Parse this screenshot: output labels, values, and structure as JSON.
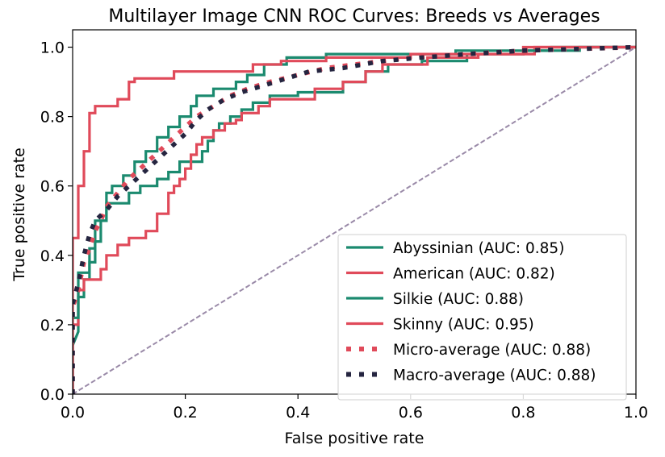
{
  "chart_data": {
    "type": "line",
    "title": "Multilayer Image CNN ROC Curves: Breeds vs Averages",
    "xlabel": "False positive rate",
    "ylabel": "True positive rate",
    "xlim": [
      0.0,
      1.0
    ],
    "ylim": [
      0.0,
      1.05
    ],
    "xticks": [
      "0.0",
      "0.2",
      "0.4",
      "0.6",
      "0.8",
      "1.0"
    ],
    "yticks": [
      "0.0",
      "0.2",
      "0.4",
      "0.6",
      "0.8",
      "1.0"
    ],
    "grid": false,
    "legend_position": "lower-right",
    "series": [
      {
        "name": "Abyssinian (AUC: 0.85)",
        "color": "#1b8a6f",
        "style": "solid",
        "points": [
          [
            0,
            0
          ],
          [
            0,
            0.14
          ],
          [
            0.01,
            0.18
          ],
          [
            0.01,
            0.28
          ],
          [
            0.02,
            0.28
          ],
          [
            0.02,
            0.33
          ],
          [
            0.03,
            0.33
          ],
          [
            0.03,
            0.38
          ],
          [
            0.04,
            0.38
          ],
          [
            0.04,
            0.44
          ],
          [
            0.05,
            0.44
          ],
          [
            0.05,
            0.5
          ],
          [
            0.06,
            0.5
          ],
          [
            0.06,
            0.55
          ],
          [
            0.1,
            0.55
          ],
          [
            0.1,
            0.58
          ],
          [
            0.12,
            0.58
          ],
          [
            0.12,
            0.6
          ],
          [
            0.15,
            0.6
          ],
          [
            0.15,
            0.62
          ],
          [
            0.17,
            0.62
          ],
          [
            0.17,
            0.64
          ],
          [
            0.19,
            0.64
          ],
          [
            0.19,
            0.67
          ],
          [
            0.23,
            0.67
          ],
          [
            0.23,
            0.7
          ],
          [
            0.24,
            0.7
          ],
          [
            0.24,
            0.73
          ],
          [
            0.25,
            0.73
          ],
          [
            0.25,
            0.76
          ],
          [
            0.26,
            0.76
          ],
          [
            0.26,
            0.78
          ],
          [
            0.28,
            0.78
          ],
          [
            0.28,
            0.8
          ],
          [
            0.3,
            0.8
          ],
          [
            0.3,
            0.82
          ],
          [
            0.32,
            0.82
          ],
          [
            0.32,
            0.84
          ],
          [
            0.35,
            0.84
          ],
          [
            0.35,
            0.86
          ],
          [
            0.4,
            0.86
          ],
          [
            0.4,
            0.87
          ],
          [
            0.48,
            0.87
          ],
          [
            0.48,
            0.9
          ],
          [
            0.52,
            0.9
          ],
          [
            0.52,
            0.93
          ],
          [
            0.56,
            0.93
          ],
          [
            0.56,
            0.95
          ],
          [
            0.62,
            0.95
          ],
          [
            0.62,
            0.96
          ],
          [
            0.7,
            0.96
          ],
          [
            0.7,
            0.98
          ],
          [
            0.8,
            0.98
          ],
          [
            0.8,
            0.99
          ],
          [
            0.9,
            0.99
          ],
          [
            0.9,
            1.0
          ],
          [
            1,
            1.0
          ]
        ]
      },
      {
        "name": "American (AUC: 0.82)",
        "color": "#e04a5a",
        "style": "solid",
        "points": [
          [
            0,
            0
          ],
          [
            0,
            0.2
          ],
          [
            0.01,
            0.2
          ],
          [
            0.01,
            0.3
          ],
          [
            0.02,
            0.3
          ],
          [
            0.02,
            0.33
          ],
          [
            0.05,
            0.33
          ],
          [
            0.05,
            0.36
          ],
          [
            0.06,
            0.36
          ],
          [
            0.06,
            0.4
          ],
          [
            0.08,
            0.4
          ],
          [
            0.08,
            0.43
          ],
          [
            0.1,
            0.43
          ],
          [
            0.1,
            0.45
          ],
          [
            0.13,
            0.45
          ],
          [
            0.13,
            0.47
          ],
          [
            0.15,
            0.47
          ],
          [
            0.15,
            0.52
          ],
          [
            0.17,
            0.52
          ],
          [
            0.17,
            0.58
          ],
          [
            0.18,
            0.58
          ],
          [
            0.18,
            0.6
          ],
          [
            0.19,
            0.6
          ],
          [
            0.19,
            0.62
          ],
          [
            0.2,
            0.62
          ],
          [
            0.2,
            0.65
          ],
          [
            0.21,
            0.65
          ],
          [
            0.21,
            0.69
          ],
          [
            0.22,
            0.69
          ],
          [
            0.22,
            0.72
          ],
          [
            0.23,
            0.72
          ],
          [
            0.23,
            0.74
          ],
          [
            0.25,
            0.74
          ],
          [
            0.25,
            0.76
          ],
          [
            0.27,
            0.76
          ],
          [
            0.27,
            0.78
          ],
          [
            0.29,
            0.78
          ],
          [
            0.29,
            0.79
          ],
          [
            0.3,
            0.79
          ],
          [
            0.3,
            0.81
          ],
          [
            0.33,
            0.81
          ],
          [
            0.33,
            0.83
          ],
          [
            0.35,
            0.83
          ],
          [
            0.35,
            0.85
          ],
          [
            0.43,
            0.85
          ],
          [
            0.43,
            0.88
          ],
          [
            0.48,
            0.88
          ],
          [
            0.48,
            0.9
          ],
          [
            0.52,
            0.9
          ],
          [
            0.52,
            0.93
          ],
          [
            0.55,
            0.93
          ],
          [
            0.55,
            0.95
          ],
          [
            0.63,
            0.95
          ],
          [
            0.63,
            0.97
          ],
          [
            0.72,
            0.97
          ],
          [
            0.72,
            0.98
          ],
          [
            0.82,
            0.98
          ],
          [
            0.82,
            1.0
          ],
          [
            1,
            1.0
          ]
        ]
      },
      {
        "name": "Silkie (AUC: 0.88)",
        "color": "#1b8a6f",
        "style": "solid",
        "points": [
          [
            0,
            0
          ],
          [
            0,
            0.22
          ],
          [
            0.01,
            0.22
          ],
          [
            0.01,
            0.35
          ],
          [
            0.03,
            0.35
          ],
          [
            0.03,
            0.42
          ],
          [
            0.04,
            0.42
          ],
          [
            0.04,
            0.5
          ],
          [
            0.06,
            0.5
          ],
          [
            0.06,
            0.58
          ],
          [
            0.07,
            0.58
          ],
          [
            0.07,
            0.6
          ],
          [
            0.09,
            0.6
          ],
          [
            0.09,
            0.63
          ],
          [
            0.11,
            0.63
          ],
          [
            0.11,
            0.67
          ],
          [
            0.13,
            0.67
          ],
          [
            0.13,
            0.7
          ],
          [
            0.15,
            0.7
          ],
          [
            0.15,
            0.74
          ],
          [
            0.17,
            0.74
          ],
          [
            0.17,
            0.77
          ],
          [
            0.19,
            0.77
          ],
          [
            0.19,
            0.8
          ],
          [
            0.21,
            0.8
          ],
          [
            0.21,
            0.83
          ],
          [
            0.22,
            0.83
          ],
          [
            0.22,
            0.86
          ],
          [
            0.25,
            0.86
          ],
          [
            0.25,
            0.88
          ],
          [
            0.29,
            0.88
          ],
          [
            0.29,
            0.9
          ],
          [
            0.31,
            0.9
          ],
          [
            0.31,
            0.92
          ],
          [
            0.34,
            0.92
          ],
          [
            0.34,
            0.95
          ],
          [
            0.38,
            0.95
          ],
          [
            0.38,
            0.97
          ],
          [
            0.45,
            0.97
          ],
          [
            0.45,
            0.98
          ],
          [
            0.68,
            0.98
          ],
          [
            0.68,
            0.99
          ],
          [
            0.85,
            0.99
          ],
          [
            0.85,
            1.0
          ],
          [
            1,
            1.0
          ]
        ]
      },
      {
        "name": "Skinny (AUC: 0.95)",
        "color": "#e04a5a",
        "style": "solid",
        "points": [
          [
            0,
            0
          ],
          [
            0,
            0.45
          ],
          [
            0.01,
            0.45
          ],
          [
            0.01,
            0.6
          ],
          [
            0.02,
            0.6
          ],
          [
            0.02,
            0.7
          ],
          [
            0.03,
            0.7
          ],
          [
            0.03,
            0.81
          ],
          [
            0.04,
            0.81
          ],
          [
            0.04,
            0.83
          ],
          [
            0.08,
            0.83
          ],
          [
            0.08,
            0.85
          ],
          [
            0.1,
            0.85
          ],
          [
            0.1,
            0.9
          ],
          [
            0.11,
            0.9
          ],
          [
            0.11,
            0.91
          ],
          [
            0.18,
            0.91
          ],
          [
            0.18,
            0.93
          ],
          [
            0.32,
            0.93
          ],
          [
            0.32,
            0.95
          ],
          [
            0.37,
            0.95
          ],
          [
            0.37,
            0.96
          ],
          [
            0.45,
            0.96
          ],
          [
            0.45,
            0.97
          ],
          [
            0.6,
            0.97
          ],
          [
            0.6,
            0.98
          ],
          [
            0.8,
            0.98
          ],
          [
            0.8,
            1.0
          ],
          [
            1,
            1.0
          ]
        ]
      },
      {
        "name": "Micro-average (AUC: 0.88)",
        "color": "#e04a5a",
        "style": "dotted",
        "points": [
          [
            0,
            0
          ],
          [
            0,
            0.25
          ],
          [
            0.01,
            0.3
          ],
          [
            0.02,
            0.38
          ],
          [
            0.03,
            0.42
          ],
          [
            0.04,
            0.47
          ],
          [
            0.05,
            0.5
          ],
          [
            0.06,
            0.54
          ],
          [
            0.08,
            0.58
          ],
          [
            0.1,
            0.62
          ],
          [
            0.12,
            0.65
          ],
          [
            0.14,
            0.68
          ],
          [
            0.16,
            0.71
          ],
          [
            0.18,
            0.74
          ],
          [
            0.2,
            0.77
          ],
          [
            0.22,
            0.8
          ],
          [
            0.25,
            0.83
          ],
          [
            0.28,
            0.86
          ],
          [
            0.31,
            0.88
          ],
          [
            0.35,
            0.9
          ],
          [
            0.4,
            0.92
          ],
          [
            0.45,
            0.94
          ],
          [
            0.5,
            0.95
          ],
          [
            0.55,
            0.96
          ],
          [
            0.6,
            0.97
          ],
          [
            0.7,
            0.98
          ],
          [
            0.8,
            0.99
          ],
          [
            0.9,
            0.995
          ],
          [
            1,
            1.0
          ]
        ]
      },
      {
        "name": "Macro-average (AUC: 0.88)",
        "color": "#252540",
        "style": "dotted",
        "points": [
          [
            0,
            0
          ],
          [
            0,
            0.26
          ],
          [
            0.01,
            0.32
          ],
          [
            0.02,
            0.4
          ],
          [
            0.03,
            0.46
          ],
          [
            0.04,
            0.5
          ],
          [
            0.06,
            0.53
          ],
          [
            0.08,
            0.57
          ],
          [
            0.1,
            0.6
          ],
          [
            0.12,
            0.63
          ],
          [
            0.14,
            0.66
          ],
          [
            0.16,
            0.69
          ],
          [
            0.18,
            0.72
          ],
          [
            0.2,
            0.75
          ],
          [
            0.22,
            0.79
          ],
          [
            0.24,
            0.82
          ],
          [
            0.27,
            0.85
          ],
          [
            0.3,
            0.87
          ],
          [
            0.34,
            0.89
          ],
          [
            0.38,
            0.91
          ],
          [
            0.42,
            0.93
          ],
          [
            0.48,
            0.94
          ],
          [
            0.55,
            0.96
          ],
          [
            0.62,
            0.97
          ],
          [
            0.7,
            0.98
          ],
          [
            0.8,
            0.99
          ],
          [
            0.9,
            0.995
          ],
          [
            1,
            1.0
          ]
        ]
      },
      {
        "name": "",
        "color": "#9a8aa8",
        "style": "dashed",
        "points": [
          [
            0,
            0
          ],
          [
            1,
            1
          ]
        ]
      }
    ]
  }
}
